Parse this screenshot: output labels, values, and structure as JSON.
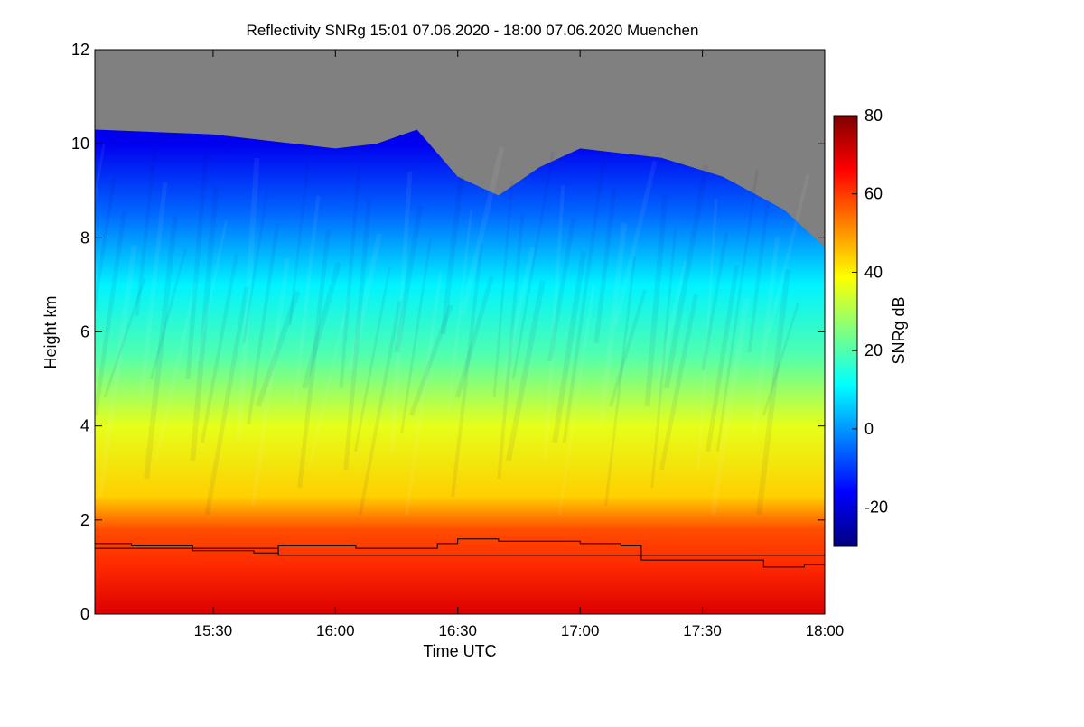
{
  "chart_data": {
    "type": "heatmap",
    "title": "Reflectivity SNRg   15:01 07.06.2020 - 18:00 07.06.2020 Muenchen",
    "xlabel": "Time UTC",
    "ylabel": "Height km",
    "colorbar_label": "SNRg dB",
    "x_range": [
      "15:01",
      "18:00"
    ],
    "x_ticks": [
      "15:30",
      "16:00",
      "16:30",
      "17:00",
      "17:30",
      "18:00"
    ],
    "y_range": [
      0,
      12
    ],
    "y_ticks": [
      "0",
      "2",
      "4",
      "6",
      "8",
      "10",
      "12"
    ],
    "colorbar_range": [
      -30,
      80
    ],
    "colorbar_ticks": [
      "-20",
      "0",
      "20",
      "40",
      "60",
      "80"
    ],
    "colormap": [
      "#00007f",
      "#0000ff",
      "#0080ff",
      "#00ffff",
      "#80ff80",
      "#ffff00",
      "#ff8000",
      "#ff0000",
      "#7f0000"
    ],
    "no_data_color": "#808080",
    "snr_profile": [
      {
        "height_km": 0.0,
        "snr_db": 70
      },
      {
        "height_km": 1.0,
        "snr_db": 62
      },
      {
        "height_km": 1.8,
        "snr_db": 58
      },
      {
        "height_km": 2.5,
        "snr_db": 44
      },
      {
        "height_km": 4.0,
        "snr_db": 36
      },
      {
        "height_km": 5.5,
        "snr_db": 20
      },
      {
        "height_km": 7.0,
        "snr_db": 10
      },
      {
        "height_km": 8.5,
        "snr_db": -5
      },
      {
        "height_km": 10.0,
        "snr_db": -18
      }
    ],
    "echo_top": [
      {
        "time": "15:01",
        "height_km": 10.3
      },
      {
        "time": "15:30",
        "height_km": 10.2
      },
      {
        "time": "16:00",
        "height_km": 9.9
      },
      {
        "time": "16:10",
        "height_km": 10.0
      },
      {
        "time": "16:20",
        "height_km": 10.3
      },
      {
        "time": "16:30",
        "height_km": 9.3
      },
      {
        "time": "16:40",
        "height_km": 8.9
      },
      {
        "time": "16:50",
        "height_km": 9.5
      },
      {
        "time": "17:00",
        "height_km": 9.9
      },
      {
        "time": "17:20",
        "height_km": 9.7
      },
      {
        "time": "17:35",
        "height_km": 9.3
      },
      {
        "time": "17:50",
        "height_km": 8.6
      },
      {
        "time": "18:00",
        "height_km": 7.8
      }
    ],
    "lines": [
      {
        "type": "step",
        "points": [
          {
            "time": "15:01",
            "height_km": 1.5
          },
          {
            "time": "15:10",
            "height_km": 1.45
          },
          {
            "time": "15:25",
            "height_km": 1.35
          },
          {
            "time": "15:40",
            "height_km": 1.3
          },
          {
            "time": "15:46",
            "height_km": 1.45
          },
          {
            "time": "16:05",
            "height_km": 1.4
          },
          {
            "time": "16:15",
            "height_km": 1.4
          },
          {
            "time": "16:25",
            "height_km": 1.5
          },
          {
            "time": "16:30",
            "height_km": 1.6
          },
          {
            "time": "16:40",
            "height_km": 1.55
          },
          {
            "time": "17:00",
            "height_km": 1.5
          },
          {
            "time": "17:10",
            "height_km": 1.45
          },
          {
            "time": "17:15",
            "height_km": 1.15
          },
          {
            "time": "17:30",
            "height_km": 1.15
          },
          {
            "time": "17:45",
            "height_km": 1.0
          },
          {
            "time": "17:55",
            "height_km": 1.05
          },
          {
            "time": "18:00",
            "height_km": 1.0
          }
        ]
      },
      {
        "type": "constant",
        "points": [
          {
            "time": "15:01",
            "height_km": 1.4
          },
          {
            "time": "15:46",
            "height_km": 1.4
          },
          {
            "time": "15:46",
            "height_km": 1.25
          },
          {
            "time": "18:00",
            "height_km": 1.25
          }
        ]
      }
    ]
  }
}
